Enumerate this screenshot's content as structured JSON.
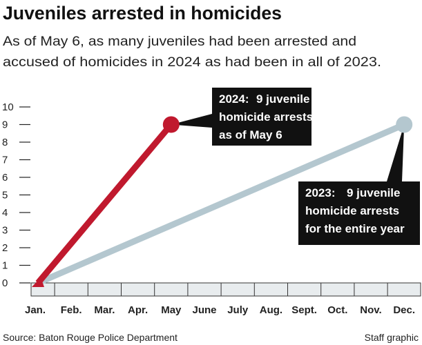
{
  "chart_data": {
    "type": "line",
    "title": "Juveniles arrested in homicides",
    "subtitle": [
      "As of May 6, as many juveniles had been arrested and",
      "accused of homicides in 2024 as had been in all of 2023."
    ],
    "categories": [
      "Jan.",
      "Feb.",
      "Mar.",
      "Apr.",
      "May",
      "June",
      "July",
      "Aug.",
      "Sept.",
      "Oct.",
      "Nov.",
      "Dec."
    ],
    "series": [
      {
        "color": "#c0192e",
        "x": [
          "Jan.",
          "May"
        ],
        "values": [
          0,
          9
        ]
      },
      {
        "color": "#b4c7cf",
        "x": [
          "Jan.",
          "Dec."
        ],
        "values": [
          0,
          9
        ]
      }
    ],
    "ylim": [
      0,
      10
    ],
    "yticks": [
      0,
      1,
      2,
      3,
      4,
      5,
      6,
      7,
      8,
      9,
      10
    ],
    "annotations": [
      {
        "series": 0,
        "label": "2024:",
        "lines": [
          "9 juvenile",
          "homicide arrests",
          "as of May 6"
        ]
      },
      {
        "series": 1,
        "label": "2023:",
        "lines": [
          "9 juvenile",
          "homicide arrests",
          "for the entire year"
        ]
      }
    ],
    "source": "Source: Baton Rouge Police Department",
    "credit": "Staff graphic"
  }
}
